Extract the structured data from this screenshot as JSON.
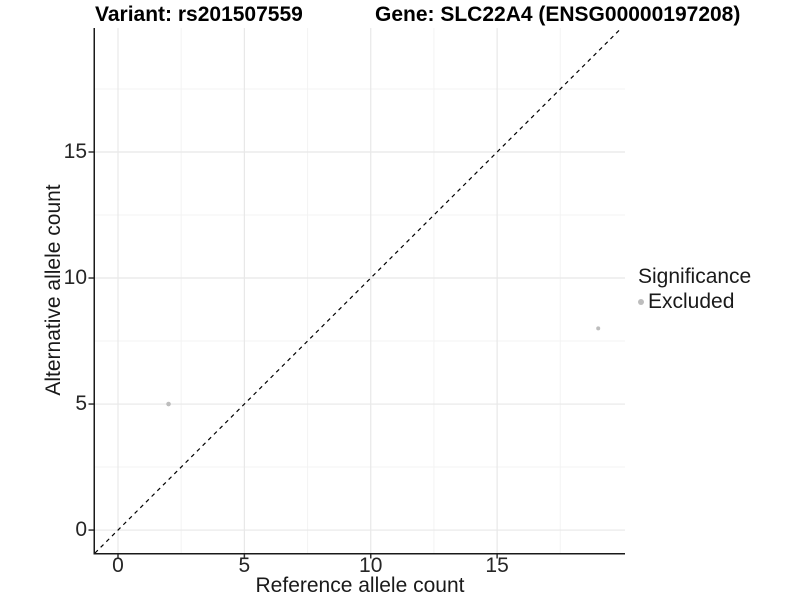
{
  "header": {
    "variant_title": "Variant: rs201507559",
    "gene_title": "Gene: SLC22A4 (ENSG00000197208)"
  },
  "chart_data": {
    "type": "scatter",
    "title_left": "Variant: rs201507559",
    "title_right": "Gene: SLC22A4 (ENSG00000197208)",
    "xlabel": "Reference allele count",
    "ylabel": "Alternative allele count",
    "xlim": [
      -0.91,
      20.06
    ],
    "ylim": [
      -0.91,
      19.92
    ],
    "x_ticks": [
      0,
      5,
      10,
      15
    ],
    "y_ticks": [
      0,
      5,
      10,
      15
    ],
    "x_minor_gridlines": [
      2.5,
      7.5,
      12.5,
      17.5
    ],
    "y_minor_gridlines": [
      2.5,
      7.5,
      12.5,
      17.5
    ],
    "grid": "on",
    "legend_position": "right",
    "identity_line": {
      "equation": "y = x",
      "style": "dashed",
      "color": "#000000"
    },
    "series": [
      {
        "name": "Excluded",
        "color": "#bdbdbd",
        "points": [
          {
            "x": 2,
            "y": 5,
            "r": 2.3
          },
          {
            "x": 19,
            "y": 8,
            "r": 2.0
          }
        ]
      }
    ],
    "legend": {
      "title": "Significance",
      "entries": [
        {
          "label": "Excluded",
          "color": "#bdbdbd"
        }
      ]
    }
  },
  "colors": {
    "background": "#ffffff",
    "grid_major": "#e8e8e8",
    "grid_minor": "#f3f3f3",
    "axis_line": "#1a1a1a",
    "tick_mark": "#333333",
    "tick_label": "#262626",
    "point": "#bdbdbd",
    "dashed_line": "#000000"
  }
}
